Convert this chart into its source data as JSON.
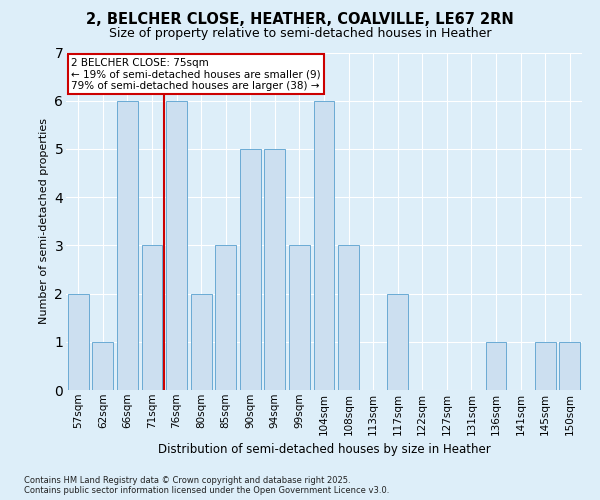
{
  "title_line1": "2, BELCHER CLOSE, HEATHER, COALVILLE, LE67 2RN",
  "title_line2": "Size of property relative to semi-detached houses in Heather",
  "categories": [
    "57sqm",
    "62sqm",
    "66sqm",
    "71sqm",
    "76sqm",
    "80sqm",
    "85sqm",
    "90sqm",
    "94sqm",
    "99sqm",
    "104sqm",
    "108sqm",
    "113sqm",
    "117sqm",
    "122sqm",
    "127sqm",
    "131sqm",
    "136sqm",
    "141sqm",
    "145sqm",
    "150sqm"
  ],
  "values": [
    2,
    1,
    6,
    3,
    6,
    2,
    3,
    5,
    5,
    3,
    6,
    3,
    0,
    2,
    0,
    0,
    0,
    1,
    0,
    1,
    1
  ],
  "bar_color": "#ccdff0",
  "bar_edgecolor": "#6aaad4",
  "highlight_index": 4,
  "highlight_line_color": "#cc0000",
  "ylabel": "Number of semi-detached properties",
  "xlabel": "Distribution of semi-detached houses by size in Heather",
  "ylim": [
    0,
    7
  ],
  "yticks": [
    0,
    1,
    2,
    3,
    4,
    5,
    6,
    7
  ],
  "annotation_text": "2 BELCHER CLOSE: 75sqm\n← 19% of semi-detached houses are smaller (9)\n79% of semi-detached houses are larger (38) →",
  "annotation_box_color": "#ffffff",
  "annotation_box_edgecolor": "#cc0000",
  "footer_line1": "Contains HM Land Registry data © Crown copyright and database right 2025.",
  "footer_line2": "Contains public sector information licensed under the Open Government Licence v3.0.",
  "background_color": "#ddeef9",
  "plot_bg_color": "#ddeef9",
  "grid_color": "#ffffff",
  "title_fontsize": 10.5,
  "subtitle_fontsize": 9,
  "tick_fontsize": 7.5,
  "ylabel_fontsize": 8,
  "xlabel_fontsize": 8.5,
  "bar_width": 0.85
}
